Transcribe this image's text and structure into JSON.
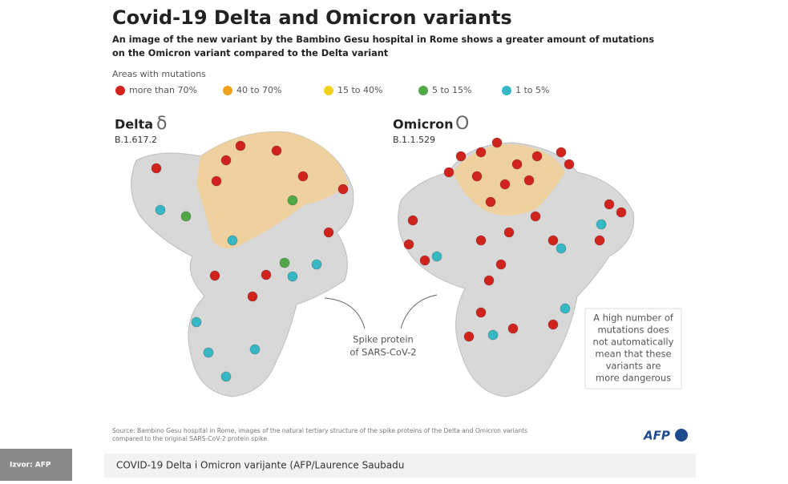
{
  "header": {
    "title": "Covid-19 Delta and Omicron variants",
    "subtitle": [
      "An image of the new variant by the Bambino Gesu hospital in Rome shows a greater amount of mutations",
      "on the Omicron variant compared to the Delta variant"
    ]
  },
  "legend": {
    "title": "Areas with mutations",
    "items": [
      {
        "label": "more than 70%",
        "color": "#d0231e"
      },
      {
        "label": "40 to 70%",
        "color": "#f0a21c"
      },
      {
        "label": "15 to 40%",
        "color": "#f2d21b"
      },
      {
        "label": "5 to 15%",
        "color": "#4fa845"
      },
      {
        "label": "1 to 5%",
        "color": "#35b7c4"
      }
    ]
  },
  "variants": [
    {
      "name": "Delta",
      "symbol": "δ",
      "lineage": "B.1.617.2"
    },
    {
      "name": "Omicron",
      "symbol": "O",
      "lineage": "B.1.1.529"
    }
  ],
  "center_note": [
    "Spike protein",
    "of SARS-CoV-2"
  ],
  "side_note": [
    "A high number of",
    "mutations does",
    "not automatically",
    "mean that these",
    "variants are",
    "more dangerous"
  ],
  "source": [
    "Source: Bambino Gesu hospital in Rome, images of the natural tertiary structure of the spike proteins of the Delta and Omicron variants",
    "compared to the original SARS-CoV-2 protein spike"
  ],
  "logo": "AFP",
  "caption": "COVID-19 Delta i Omicron varijante (AFP/Laurence Saubadu",
  "badge": "Izvor: AFP"
}
